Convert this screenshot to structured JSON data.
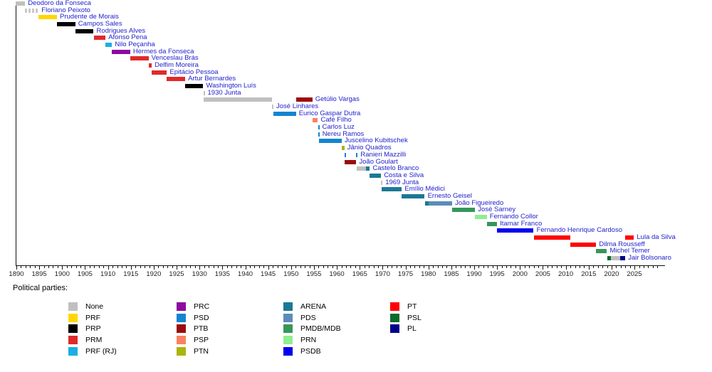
{
  "chart_data": {
    "type": "timeline",
    "title": "Timeline of presidents of Brazil by political party",
    "x_axis": {
      "min": 1890,
      "max": 2025,
      "major_tick_step": 5,
      "minor_tick_step": 1,
      "tick_labels": [
        "1890",
        "1895",
        "1900",
        "1905",
        "1910",
        "1915",
        "1920",
        "1925",
        "1930",
        "1935",
        "1940",
        "1945",
        "1950",
        "1955",
        "1960",
        "1965",
        "1970",
        "1975",
        "1980",
        "1985",
        "1990",
        "1995",
        "2000",
        "2005",
        "2010",
        "2015",
        "2020",
        "2025"
      ]
    },
    "legend": {
      "title": "Political parties:",
      "columns": [
        [
          "None",
          "PRF",
          "PRP",
          "PRM",
          "PRF (RJ)"
        ],
        [
          "PRC",
          "PSD",
          "PTB",
          "PSP",
          "PTN"
        ],
        [
          "ARENA",
          "PDS",
          "PMDB/MDB",
          "PRN",
          "PSDB"
        ],
        [
          "PT",
          "PSL",
          "PL"
        ]
      ]
    },
    "parties": {
      "None": "#C0C0C0",
      "PRF": "#FFD700",
      "PRP": "#000000",
      "PRM": "#E02A2A",
      "PRF (RJ)": "#19AFE1",
      "PRC": "#8C0AA0",
      "PSD": "#1485D0",
      "PTB": "#9B0C0C",
      "PSP": "#FA8262",
      "PTN": "#AAB40A",
      "ARENA": "#1B7895",
      "PDS": "#5B8CB8",
      "PMDB/MDB": "#37965A",
      "PRN": "#90EE90",
      "PSDB": "#0000EE",
      "PT": "#FF0000",
      "PSL": "#0A6B2C",
      "PL": "#00008B"
    },
    "label_color": "#2222CC",
    "presidents": [
      {
        "name": "Deodoro da Fonseca",
        "segments": [
          {
            "start": 1889.87,
            "end": 1891.9,
            "party": "None"
          }
        ]
      },
      {
        "name": "Floriano Peixoto",
        "segments": [
          {
            "start": 1891.9,
            "end": 1894.87,
            "party": "None",
            "style": "striped"
          }
        ]
      },
      {
        "name": "Prudente de Morais",
        "segments": [
          {
            "start": 1894.87,
            "end": 1898.87,
            "party": "PRF"
          }
        ]
      },
      {
        "name": "Campos Sales",
        "segments": [
          {
            "start": 1898.87,
            "end": 1902.87,
            "party": "PRP"
          }
        ]
      },
      {
        "name": "Rodrigues Alves",
        "segments": [
          {
            "start": 1902.87,
            "end": 1906.87,
            "party": "PRP"
          }
        ]
      },
      {
        "name": "Afonso Pena",
        "segments": [
          {
            "start": 1906.87,
            "end": 1909.47,
            "party": "PRM"
          }
        ]
      },
      {
        "name": "Nilo Peçanha",
        "segments": [
          {
            "start": 1909.47,
            "end": 1910.87,
            "party": "PRF (RJ)"
          }
        ]
      },
      {
        "name": "Hermes da Fonseca",
        "segments": [
          {
            "start": 1910.87,
            "end": 1914.87,
            "party": "PRC"
          }
        ]
      },
      {
        "name": "Venceslau Brás",
        "segments": [
          {
            "start": 1914.87,
            "end": 1918.87,
            "party": "PRM"
          }
        ]
      },
      {
        "name": "Delfim Moreira",
        "segments": [
          {
            "start": 1918.87,
            "end": 1919.56,
            "party": "PRM"
          }
        ]
      },
      {
        "name": "Epitácio Pessoa",
        "segments": [
          {
            "start": 1919.56,
            "end": 1922.87,
            "party": "PRM"
          }
        ]
      },
      {
        "name": "Artur Bernardes",
        "segments": [
          {
            "start": 1922.87,
            "end": 1926.87,
            "party": "PRM"
          }
        ]
      },
      {
        "name": "Washington Luís",
        "segments": [
          {
            "start": 1926.87,
            "end": 1930.82,
            "party": "PRP"
          }
        ]
      },
      {
        "name": "1930 Junta",
        "segments": [
          {
            "start": 1930.82,
            "end": 1930.87,
            "party": "None"
          }
        ]
      },
      {
        "name": "Getúlio Vargas",
        "segments": [
          {
            "start": 1930.87,
            "end": 1945.83,
            "party": "None"
          },
          {
            "start": 1951.08,
            "end": 1954.65,
            "party": "PTB"
          }
        ]
      },
      {
        "name": "José Linhares",
        "segments": [
          {
            "start": 1945.83,
            "end": 1946.08,
            "party": "None"
          }
        ]
      },
      {
        "name": "Eurico Gaspar Dutra",
        "segments": [
          {
            "start": 1946.08,
            "end": 1951.08,
            "party": "PSD"
          }
        ]
      },
      {
        "name": "Café Filho",
        "segments": [
          {
            "start": 1954.65,
            "end": 1955.87,
            "party": "PSP"
          }
        ]
      },
      {
        "name": "Carlos Luz",
        "segments": [
          {
            "start": 1955.87,
            "end": 1955.9,
            "party": "PSD"
          }
        ]
      },
      {
        "name": "Nereu Ramos",
        "segments": [
          {
            "start": 1955.9,
            "end": 1956.08,
            "party": "PSD"
          }
        ]
      },
      {
        "name": "Juscelino Kubitschek",
        "segments": [
          {
            "start": 1956.08,
            "end": 1961.08,
            "party": "PSD"
          }
        ]
      },
      {
        "name": "Jânio Quadros",
        "segments": [
          {
            "start": 1961.08,
            "end": 1961.65,
            "party": "PTN"
          }
        ]
      },
      {
        "name": "Ranieri Mazzilli",
        "segments": [
          {
            "start": 1961.65,
            "end": 1961.7,
            "party": "PSD"
          },
          {
            "start": 1964.25,
            "end": 1964.3,
            "party": "PSD"
          }
        ]
      },
      {
        "name": "João Goulart",
        "segments": [
          {
            "start": 1961.7,
            "end": 1964.25,
            "party": "PTB"
          }
        ]
      },
      {
        "name": "Castelo Branco",
        "segments": [
          {
            "start": 1964.3,
            "end": 1966.3,
            "party": "None"
          },
          {
            "start": 1966.3,
            "end": 1967.2,
            "party": "ARENA"
          }
        ]
      },
      {
        "name": "Costa e Silva",
        "segments": [
          {
            "start": 1967.2,
            "end": 1969.66,
            "party": "ARENA"
          }
        ]
      },
      {
        "name": "1969 Junta",
        "segments": [
          {
            "start": 1969.66,
            "end": 1969.83,
            "party": "None"
          }
        ]
      },
      {
        "name": "Emílio Médici",
        "segments": [
          {
            "start": 1969.83,
            "end": 1974.2,
            "party": "ARENA"
          }
        ]
      },
      {
        "name": "Ernesto Geisel",
        "segments": [
          {
            "start": 1974.2,
            "end": 1979.2,
            "party": "ARENA"
          }
        ]
      },
      {
        "name": "João Figueiredo",
        "segments": [
          {
            "start": 1979.2,
            "end": 1980.1,
            "party": "ARENA"
          },
          {
            "start": 1980.1,
            "end": 1985.2,
            "party": "PDS"
          }
        ]
      },
      {
        "name": "José Sarney",
        "segments": [
          {
            "start": 1985.2,
            "end": 1990.2,
            "party": "PMDB/MDB"
          }
        ]
      },
      {
        "name": "Fernando Collor",
        "segments": [
          {
            "start": 1990.2,
            "end": 1992.75,
            "party": "PRN"
          }
        ]
      },
      {
        "name": "Itamar Franco",
        "segments": [
          {
            "start": 1992.75,
            "end": 1995.0,
            "party": "PMDB/MDB"
          }
        ]
      },
      {
        "name": "Fernando Henrique Cardoso",
        "segments": [
          {
            "start": 1995.0,
            "end": 2003.0,
            "party": "PSDB"
          }
        ]
      },
      {
        "name": "Lula da Silva",
        "segments": [
          {
            "start": 2003.0,
            "end": 2011.0,
            "party": "PT"
          },
          {
            "start": 2023.0,
            "end": 2024.9,
            "party": "PT"
          }
        ]
      },
      {
        "name": "Dilma Rousseff",
        "segments": [
          {
            "start": 2011.0,
            "end": 2016.66,
            "party": "PT"
          }
        ]
      },
      {
        "name": "Michel Temer",
        "segments": [
          {
            "start": 2016.66,
            "end": 2019.0,
            "party": "PMDB/MDB"
          }
        ]
      },
      {
        "name": "Jair Bolsonaro",
        "segments": [
          {
            "start": 2019.0,
            "end": 2019.9,
            "party": "PSL"
          },
          {
            "start": 2019.9,
            "end": 2021.92,
            "party": "None"
          },
          {
            "start": 2021.92,
            "end": 2023.0,
            "party": "PL"
          }
        ]
      }
    ]
  }
}
